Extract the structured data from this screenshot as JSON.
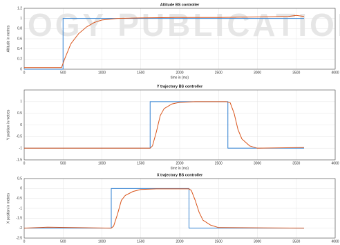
{
  "watermark": "OGY PUBLICATIONS",
  "chart_data": [
    {
      "type": "line",
      "title": "Altitude BS controller",
      "x_label": "time in (ms)",
      "y_label": "Altitude in metres",
      "xlim": [
        0,
        4000
      ],
      "xticks": [
        0,
        500,
        1000,
        1500,
        2000,
        2500,
        3000,
        3500,
        4000
      ],
      "ylim": [
        0,
        1.2
      ],
      "yticks": [
        0,
        0.2,
        0.4,
        0.6,
        0.8,
        1,
        1.2
      ],
      "grid": true,
      "series": [
        {
          "color": "#2f7fd0",
          "x": [
            0,
            500,
            500,
            3600
          ],
          "values": [
            0,
            0,
            1,
            1
          ]
        },
        {
          "color": "#d95319",
          "x": [
            0,
            480,
            520,
            600,
            700,
            800,
            900,
            1000,
            1200,
            1500,
            2000,
            2500,
            3000,
            3400,
            3500,
            3600
          ],
          "values": [
            0.03,
            0.03,
            0.2,
            0.5,
            0.7,
            0.83,
            0.92,
            0.97,
            1.0,
            1.01,
            1.02,
            1.02,
            1.03,
            1.04,
            1.06,
            1.04
          ]
        }
      ]
    },
    {
      "type": "line",
      "title": "Y trajectory BS controller",
      "x_label": "time in (ms)",
      "y_label": "Y position in metres",
      "xlim": [
        0,
        4000
      ],
      "xticks": [
        0,
        500,
        1000,
        1500,
        2000,
        2500,
        3000,
        3500,
        4000
      ],
      "ylim": [
        -1.5,
        1.5
      ],
      "yticks": [
        -1.5,
        -1,
        -0.5,
        0,
        0.5,
        1
      ],
      "grid": true,
      "series": [
        {
          "color": "#2f7fd0",
          "x": [
            0,
            1620,
            1620,
            2620,
            2620,
            3600
          ],
          "values": [
            -1,
            -1,
            1,
            1,
            -1,
            -1
          ]
        },
        {
          "color": "#d95319",
          "x": [
            0,
            1620,
            1650,
            1700,
            1750,
            1800,
            1900,
            2000,
            2200,
            2600,
            2650,
            2700,
            2750,
            2800,
            2900,
            3000,
            3600
          ],
          "values": [
            -1,
            -1,
            -0.9,
            -0.3,
            0.4,
            0.7,
            0.9,
            0.97,
            1.0,
            1.0,
            0.95,
            0.5,
            -0.2,
            -0.6,
            -0.9,
            -1.0,
            -0.97
          ]
        }
      ]
    },
    {
      "type": "line",
      "title": "X trajectory BS controller",
      "y_label": "X position in metres",
      "xlim": [
        0,
        4000
      ],
      "xticks": [
        0,
        500,
        1000,
        1500,
        2000,
        2500,
        3000,
        3500,
        4000
      ],
      "ylim": [
        -2.5,
        0.5
      ],
      "yticks": [
        -2.5,
        -2,
        -1.5,
        -1,
        -0.5,
        0,
        0.5
      ],
      "grid": true,
      "series": [
        {
          "color": "#2f7fd0",
          "x": [
            0,
            1120,
            1120,
            2120,
            2120,
            3600
          ],
          "values": [
            -2,
            -2,
            0,
            0,
            -2,
            -2
          ]
        },
        {
          "color": "#d95319",
          "x": [
            0,
            300,
            1120,
            1150,
            1200,
            1250,
            1300,
            1400,
            1500,
            1700,
            2120,
            2150,
            2200,
            2250,
            2300,
            2400,
            2500,
            3600
          ],
          "values": [
            -2,
            -1.95,
            -2,
            -1.9,
            -1.3,
            -0.6,
            -0.35,
            -0.15,
            -0.05,
            -0.02,
            -0.02,
            -0.1,
            -0.6,
            -1.2,
            -1.6,
            -1.85,
            -1.97,
            -2
          ]
        }
      ]
    }
  ]
}
